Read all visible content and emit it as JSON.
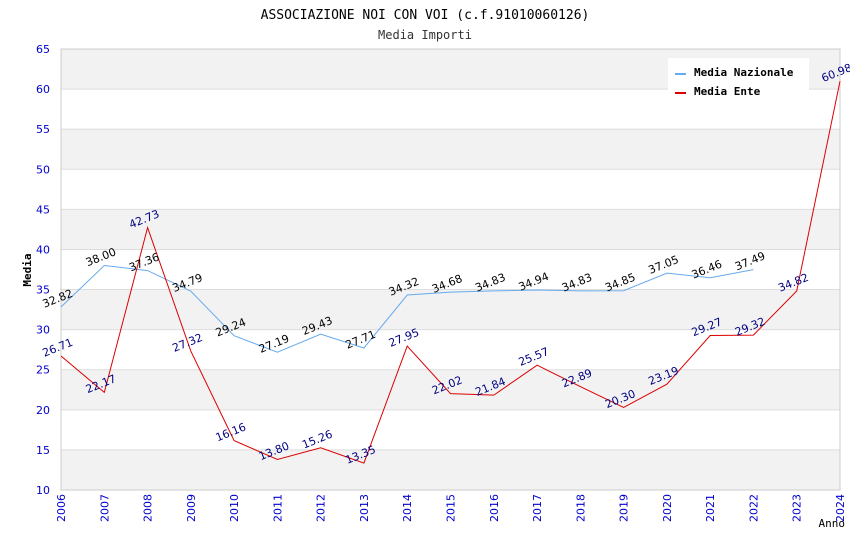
{
  "chart_data": {
    "type": "line",
    "title": "ASSOCIAZIONE NOI CON VOI (c.f.91010060126)",
    "subtitle": "Media Importi",
    "xlabel": "Anno",
    "ylabel": "Media",
    "ylim": [
      10,
      65
    ],
    "yticks": [
      "10",
      "15",
      "20",
      "25",
      "30",
      "35",
      "40",
      "45",
      "50",
      "55",
      "60",
      "65"
    ],
    "categories": [
      "2006",
      "2007",
      "2008",
      "2009",
      "2010",
      "2011",
      "2012",
      "2013",
      "2014",
      "2015",
      "2016",
      "2017",
      "2018",
      "2019",
      "2020",
      "2021",
      "2022",
      "2023",
      "2024"
    ],
    "legend_position": "top-right",
    "grid": "horizontal bands",
    "series": [
      {
        "name": "Media Nazionale",
        "color": "#66aaee",
        "label_color": "#000000",
        "values": [
          32.82,
          38.0,
          37.36,
          34.79,
          29.24,
          27.19,
          29.43,
          27.71,
          34.32,
          34.68,
          34.83,
          34.94,
          34.83,
          34.85,
          37.05,
          36.46,
          37.49,
          null,
          null
        ],
        "labels": [
          "32.82",
          "38.00",
          "37.36",
          "34.79",
          "29.24",
          "27.19",
          "29.43",
          "27.71",
          "34.32",
          "34.68",
          "34.83",
          "34.94",
          "34.83",
          "34.85",
          "37.05",
          "36.46",
          "37.49",
          "",
          ""
        ]
      },
      {
        "name": "Media Ente",
        "color": "#dd0000",
        "label_color": "#000080",
        "values": [
          26.71,
          22.17,
          42.73,
          27.32,
          16.16,
          13.8,
          15.26,
          13.35,
          27.95,
          22.02,
          21.84,
          25.57,
          22.89,
          20.3,
          23.19,
          29.27,
          29.32,
          34.82,
          60.98
        ],
        "labels": [
          "26.71",
          "22.17",
          "42.73",
          "27.32",
          "16.16",
          "13.80",
          "15.26",
          "13.35",
          "27.95",
          "22.02",
          "21.84",
          "25.57",
          "22.89",
          "20.30",
          "23.19",
          "29.27",
          "29.32",
          "34.82",
          "60.98"
        ]
      }
    ]
  }
}
